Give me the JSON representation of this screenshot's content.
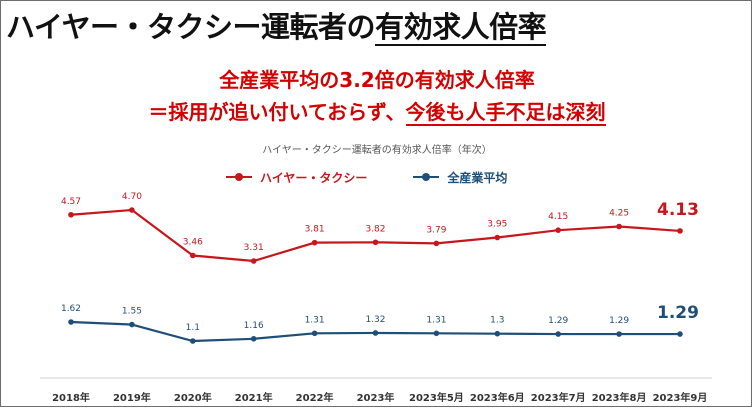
{
  "page": {
    "title_part1": "ハイヤー・タクシー運転者の",
    "title_part2": "有効求人倍率",
    "headline_line1": "全産業平均の3.2倍の有効求人倍率",
    "headline_line2_part1": "＝採用が追い付いておらず、",
    "headline_line2_part2": "今後も人手不足は深刻"
  },
  "colors": {
    "taxi": "#c8161d",
    "all": "#1f4e79"
  },
  "chart_data": {
    "type": "line",
    "title": "ハイヤー・タクシー運転者の有効求人倍率（年次）",
    "categories": [
      "2018年",
      "2019年",
      "2020年",
      "2021年",
      "2022年",
      "2023年",
      "2023年5月",
      "2023年6月",
      "2023年7月",
      "2023年8月",
      "2023年9月"
    ],
    "series": [
      {
        "name": "ハイヤー・タクシー",
        "values": [
          4.57,
          4.7,
          3.46,
          3.31,
          3.81,
          3.82,
          3.79,
          3.95,
          4.15,
          4.25,
          4.13
        ],
        "labels": [
          "4.57",
          "4.70",
          "3.46",
          "3.31",
          "3.81",
          "3.82",
          "3.79",
          "3.95",
          "4.15",
          "4.25",
          "4.13"
        ]
      },
      {
        "name": "全産業平均",
        "values": [
          1.62,
          1.55,
          1.1,
          1.16,
          1.31,
          1.32,
          1.31,
          1.3,
          1.29,
          1.29,
          1.29
        ],
        "labels": [
          "1.62",
          "1.55",
          "1.1",
          "1.16",
          "1.31",
          "1.32",
          "1.31",
          "1.3",
          "1.29",
          "1.29",
          "1.29"
        ]
      }
    ],
    "xlabel": "",
    "ylabel": "",
    "grid": false,
    "legend": "top-center"
  }
}
